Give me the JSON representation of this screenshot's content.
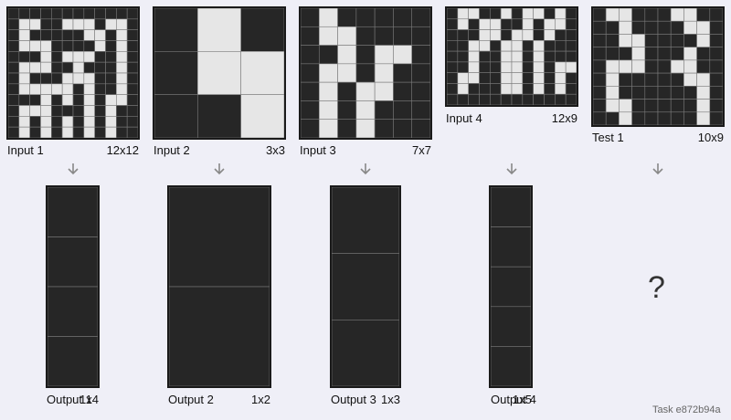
{
  "colors": {
    "black": "#262626",
    "white": "#e6e6e6",
    "line": "#7a7a7a",
    "background": "#efeff7"
  },
  "icons": {
    "arrow": "arrow-down-icon"
  },
  "pairs": [
    {
      "input_label": "Input 1",
      "input_size": "12x12",
      "output_label": "Output 1",
      "output_size": "1x4",
      "input_grid": [
        "000000000000",
        "011001110110",
        "010000011010",
        "011100001010",
        "000101110010",
        "011100100010",
        "010001110010",
        "011111010010",
        "000101010110",
        "011100010100",
        "010101010100",
        "010101010100"
      ],
      "output_grid": [
        "0",
        "0",
        "0",
        "0"
      ]
    },
    {
      "input_label": "Input 2",
      "input_size": "3x3",
      "output_label": "Output 2",
      "output_size": "1x2",
      "input_grid": [
        "010",
        "011",
        "001"
      ],
      "output_grid": [
        "0",
        "0"
      ]
    },
    {
      "input_label": "Input 3",
      "input_size": "7x7",
      "output_label": "Output 3",
      "output_size": "1x3",
      "input_grid": [
        "0100000",
        "0110000",
        "0010110",
        "0110100",
        "0101100",
        "0101000",
        "0101000"
      ],
      "output_grid": [
        "0",
        "0",
        "0"
      ]
    },
    {
      "input_label": "Input 4",
      "input_size": "12x9",
      "output_label": "Output 4",
      "output_size": "1x5",
      "input_grid": [
        "011001011010",
        "010110010110",
        "000110110100",
        "001101101000",
        "001001101000",
        "001001101011",
        "011001101010",
        "010001101010",
        "000000000000"
      ],
      "output_grid": [
        "0",
        "0",
        "0",
        "0",
        "0"
      ]
    }
  ],
  "test": {
    "label": "Test 1",
    "size": "10x9",
    "unknown": "?",
    "grid": [
      "0110001100",
      "0010000110",
      "0011000010",
      "0001000100",
      "0111001100",
      "0100000110",
      "0100000010",
      "0110000010",
      "0010000010"
    ]
  },
  "task_id": "Task e872b94a"
}
